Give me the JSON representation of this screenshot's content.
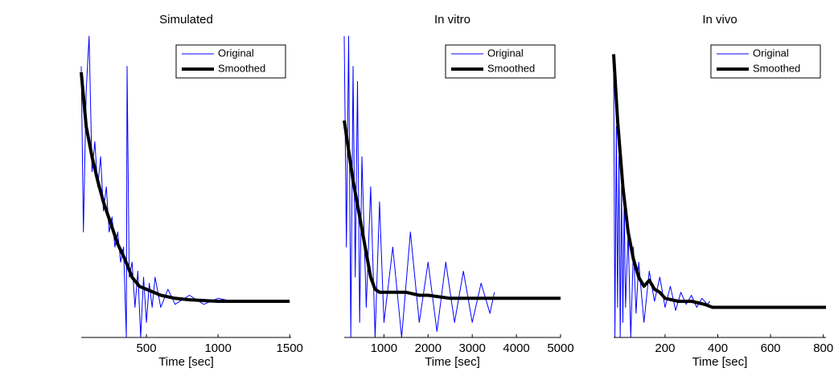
{
  "chart_data": [
    {
      "type": "line",
      "title": "Simulated",
      "xlabel": "Time [sec]",
      "xlim": [
        45,
        1510
      ],
      "xticks": [
        500,
        1000,
        1500
      ],
      "ylim": [
        0,
        1
      ],
      "legend": "top-right",
      "series": [
        {
          "name": "Original",
          "color": "#0000ff",
          "x": [
            45,
            60,
            80,
            100,
            120,
            140,
            160,
            180,
            200,
            220,
            240,
            260,
            280,
            300,
            320,
            340,
            360,
            365,
            380,
            400,
            420,
            440,
            460,
            480,
            500,
            520,
            540,
            560,
            600,
            650,
            700,
            800,
            900,
            1000,
            1100,
            1200
          ],
          "values": [
            0.9,
            0.35,
            0.82,
            1.0,
            0.55,
            0.65,
            0.5,
            0.6,
            0.42,
            0.5,
            0.35,
            0.4,
            0.3,
            0.35,
            0.25,
            0.3,
            0.0,
            0.9,
            0.2,
            0.25,
            0.1,
            0.22,
            0.0,
            0.2,
            0.05,
            0.18,
            0.1,
            0.2,
            0.1,
            0.16,
            0.11,
            0.14,
            0.11,
            0.13,
            0.12,
            0.12
          ]
        },
        {
          "name": "Smoothed",
          "color": "#000000",
          "x": [
            45,
            80,
            120,
            160,
            200,
            250,
            300,
            350,
            400,
            450,
            500,
            600,
            700,
            800,
            1000,
            1200,
            1500
          ],
          "values": [
            0.88,
            0.7,
            0.6,
            0.52,
            0.45,
            0.38,
            0.31,
            0.26,
            0.2,
            0.17,
            0.16,
            0.14,
            0.13,
            0.125,
            0.12,
            0.12,
            0.12
          ]
        }
      ]
    },
    {
      "type": "line",
      "title": "In vitro",
      "xlabel": "Time [sec]",
      "xlim": [
        100,
        5000
      ],
      "xticks": [
        1000,
        2000,
        3000,
        4000,
        5000
      ],
      "ylim": [
        0,
        1
      ],
      "legend": "top-right",
      "series": [
        {
          "name": "Original",
          "color": "#0000ff",
          "x": [
            100,
            150,
            200,
            250,
            300,
            350,
            400,
            450,
            500,
            600,
            700,
            800,
            900,
            1000,
            1200,
            1400,
            1600,
            1800,
            2000,
            2200,
            2400,
            2600,
            2800,
            3000,
            3200,
            3400,
            3500
          ],
          "values": [
            1.0,
            0.3,
            1.0,
            0.0,
            0.9,
            0.2,
            0.85,
            0.05,
            0.6,
            0.1,
            0.5,
            0.0,
            0.45,
            0.05,
            0.3,
            0.0,
            0.35,
            0.05,
            0.25,
            0.02,
            0.25,
            0.05,
            0.22,
            0.05,
            0.18,
            0.08,
            0.15
          ]
        },
        {
          "name": "Smoothed",
          "color": "#000000",
          "x": [
            100,
            200,
            300,
            400,
            500,
            600,
            700,
            800,
            900,
            1000,
            1200,
            1500,
            1800,
            2000,
            2500,
            3000,
            3500,
            4000,
            5000
          ],
          "values": [
            0.72,
            0.62,
            0.52,
            0.44,
            0.36,
            0.28,
            0.2,
            0.16,
            0.15,
            0.15,
            0.15,
            0.15,
            0.14,
            0.14,
            0.13,
            0.13,
            0.13,
            0.13,
            0.13
          ]
        }
      ]
    },
    {
      "type": "line",
      "title": "In vivo",
      "xlabel": "Time [sec]",
      "xlim": [
        5,
        810
      ],
      "xticks": [
        200,
        400,
        600,
        800
      ],
      "ylim": [
        0,
        1
      ],
      "legend": "top-right",
      "series": [
        {
          "name": "Original",
          "color": "#0000ff",
          "x": [
            5,
            10,
            15,
            20,
            25,
            30,
            35,
            40,
            45,
            50,
            60,
            70,
            80,
            90,
            100,
            120,
            140,
            160,
            180,
            200,
            220,
            240,
            260,
            280,
            300,
            320,
            340,
            360,
            370
          ],
          "values": [
            0.9,
            0.0,
            0.7,
            0.1,
            0.6,
            0.0,
            0.5,
            0.05,
            0.45,
            0.1,
            0.35,
            0.0,
            0.3,
            0.08,
            0.25,
            0.05,
            0.22,
            0.12,
            0.2,
            0.1,
            0.17,
            0.09,
            0.15,
            0.11,
            0.14,
            0.1,
            0.13,
            0.11,
            0.12
          ]
        },
        {
          "name": "Smoothed",
          "color": "#000000",
          "x": [
            5,
            20,
            40,
            60,
            80,
            100,
            120,
            140,
            160,
            180,
            200,
            250,
            300,
            350,
            380,
            500,
            810
          ],
          "values": [
            0.94,
            0.72,
            0.5,
            0.35,
            0.26,
            0.2,
            0.17,
            0.19,
            0.16,
            0.15,
            0.13,
            0.12,
            0.12,
            0.11,
            0.1,
            0.1,
            0.1
          ]
        }
      ]
    }
  ]
}
